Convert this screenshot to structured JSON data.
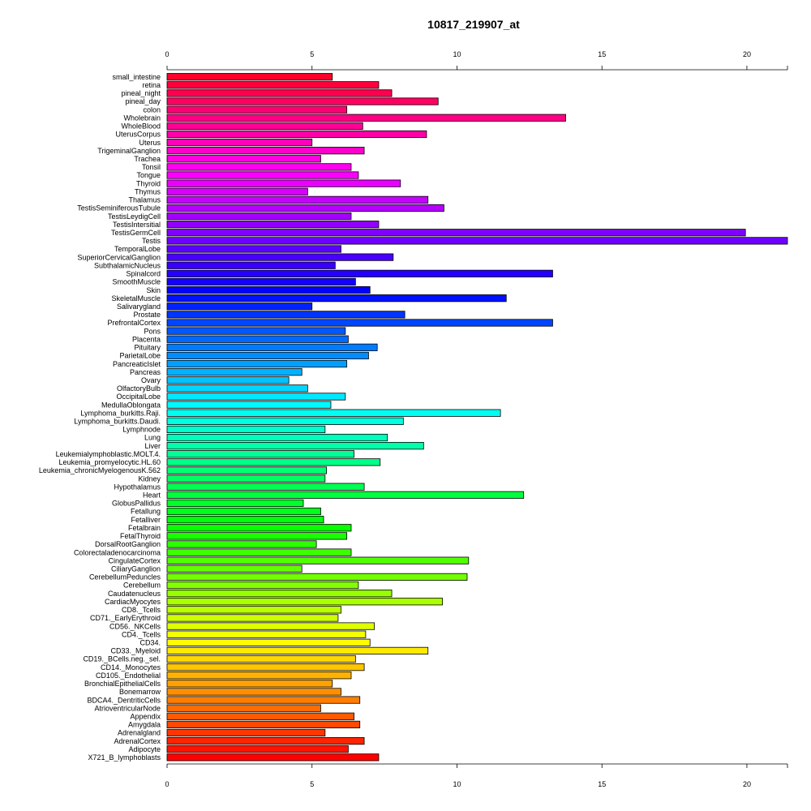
{
  "chart_data": {
    "type": "bar",
    "orientation": "horizontal",
    "title": "10817_219907_at",
    "xlabel": "",
    "ylabel": "",
    "xlim": [
      0,
      21.4
    ],
    "x_ticks": [
      0,
      5,
      10,
      15,
      20
    ],
    "x_tick_labels": [
      "0",
      "5",
      "10",
      "15",
      "20"
    ],
    "categories": [
      "small_intestine",
      "retina",
      "pineal_night",
      "pineal_day",
      "colon",
      "Wholebrain",
      "WholeBlood",
      "UterusCorpus",
      "Uterus",
      "TrigeminalGanglion",
      "Trachea",
      "Tonsil",
      "Tongue",
      "Thyroid",
      "Thymus",
      "Thalamus",
      "TestisSeminiferousTubule",
      "TestisLeydigCell",
      "TestisIntersitial",
      "TestisGermCell",
      "Testis",
      "TemporalLobe",
      "SuperiorCervicalGanglion",
      "SubthalamicNucleus",
      "Spinalcord",
      "SmoothMuscle",
      "Skin",
      "SkeletalMuscle",
      "Salivarygland",
      "Prostate",
      "PrefrontalCortex",
      "Pons",
      "Placenta",
      "Pituitary",
      "ParietalLobe",
      "PancreaticIslet",
      "Pancreas",
      "Ovary",
      "OlfactoryBulb",
      "OccipitalLobe",
      "MedullaOblongata",
      "Lymphoma_burkitts.Raji.",
      "Lymphoma_burkitts.Daudi.",
      "Lymphnode",
      "Lung",
      "Liver",
      "Leukemialymphoblastic.MOLT.4.",
      "Leukemia_promyelocytic.HL.60",
      "Leukemia_chronicMyelogenousK.562",
      "Kidney",
      "Hypothalamus",
      "Heart",
      "GlobusPallidus",
      "Fetallung",
      "Fetalliver",
      "Fetalbrain",
      "FetalThyroid",
      "DorsalRootGanglion",
      "Colorectaladenocarcinoma",
      "CingulateCortex",
      "CiliaryGanglion",
      "CerebellumPeduncles",
      "Cerebellum",
      "Caudatenucleus",
      "CardiacMyocytes",
      "CD8._Tcells",
      "CD71._EarlyErythroid",
      "CD56._NKCells",
      "CD4._Tcells",
      "CD34.",
      "CD33._Myeloid",
      "CD19._BCells.neg._sel.",
      "CD14._Monocytes",
      "CD105._Endothelial",
      "BronchialEpithelialCells",
      "Bonemarrow",
      "BDCA4._DentriticCells",
      "AtrioventricularNode",
      "Appendix",
      "Amygdala",
      "Adrenalgland",
      "AdrenalCortex",
      "Adipocyte",
      "X721_B_lymphoblasts"
    ],
    "values": [
      5.7,
      7.3,
      7.75,
      9.35,
      6.2,
      13.75,
      6.75,
      8.95,
      5.0,
      6.8,
      5.3,
      6.35,
      6.6,
      8.05,
      4.85,
      9.0,
      9.55,
      6.35,
      7.3,
      19.95,
      21.4,
      6.0,
      7.8,
      5.8,
      13.3,
      6.5,
      7.0,
      11.7,
      5.0,
      8.2,
      13.3,
      6.15,
      6.25,
      7.25,
      6.95,
      6.2,
      4.65,
      4.2,
      4.85,
      6.15,
      5.65,
      11.5,
      8.15,
      5.45,
      7.6,
      8.85,
      6.45,
      7.35,
      5.5,
      5.45,
      6.8,
      12.3,
      4.7,
      5.3,
      5.4,
      6.35,
      6.2,
      5.15,
      6.35,
      10.4,
      4.65,
      10.35,
      6.6,
      7.75,
      9.5,
      6.0,
      5.9,
      7.15,
      6.85,
      7.0,
      9.0,
      6.5,
      6.8,
      6.35,
      5.7,
      6.0,
      6.65,
      5.3,
      6.45,
      6.65,
      5.45,
      6.8,
      6.25,
      7.3
    ],
    "bar_colors": "rainbow hue gradient from red (top) through purple, blue, cyan, green, yellow, orange back to red (bottom)",
    "grid": false,
    "legend": "none"
  }
}
